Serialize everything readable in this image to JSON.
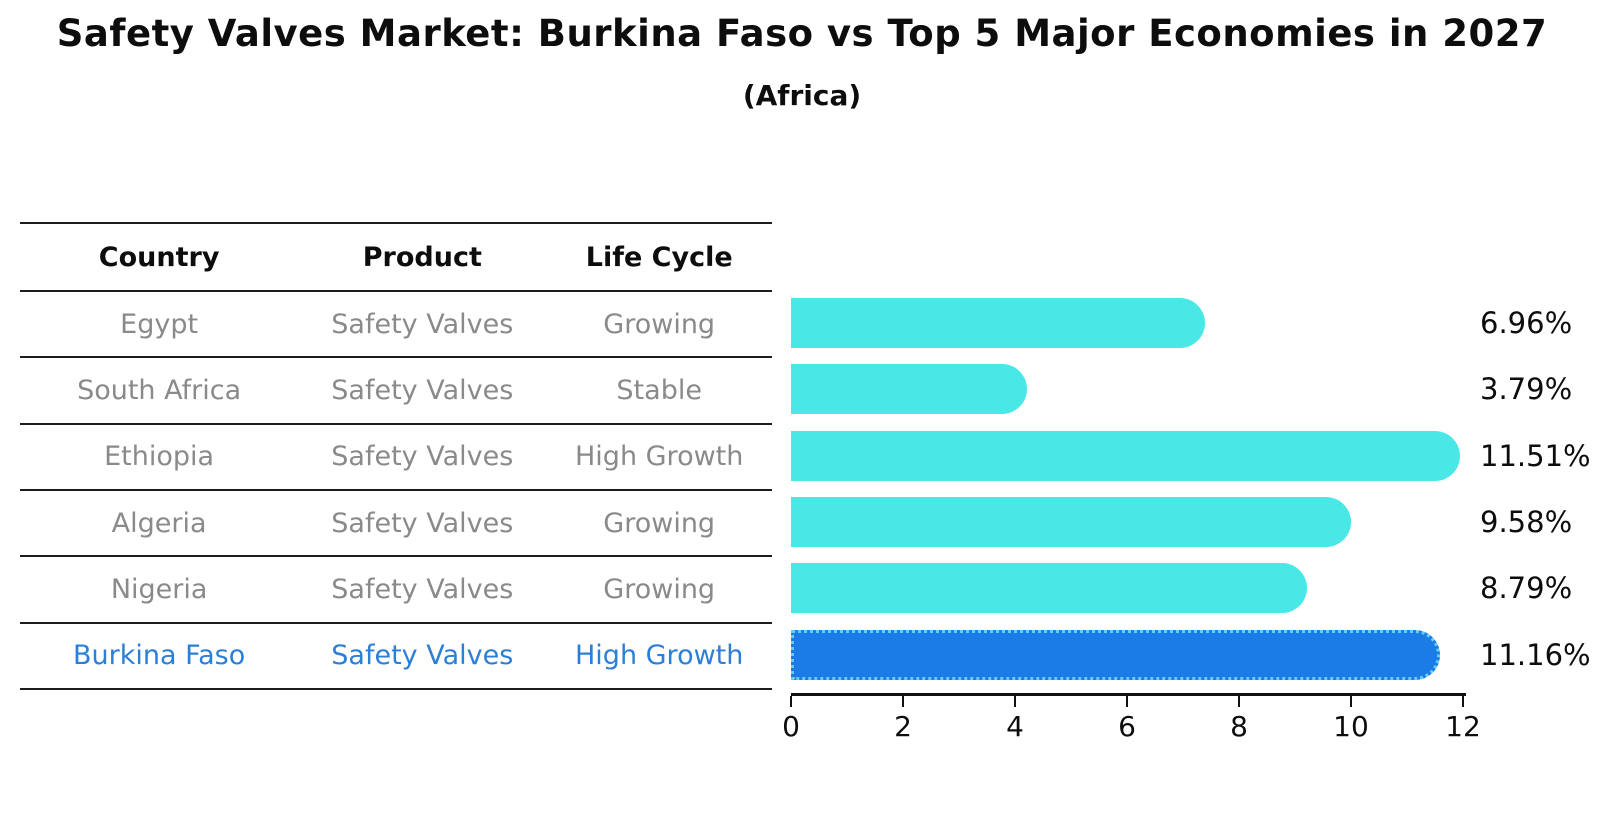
{
  "header": {
    "title": "Safety Valves Market: Burkina Faso vs Top 5 Major Economies in 2027",
    "subtitle": "(Africa)"
  },
  "table": {
    "columns": [
      "Country",
      "Product",
      "Life Cycle"
    ],
    "rows": [
      {
        "country": "Egypt",
        "product": "Safety Valves",
        "life_cycle": "Growing",
        "highlight": false
      },
      {
        "country": "South Africa",
        "product": "Safety Valves",
        "life_cycle": "Stable",
        "highlight": false
      },
      {
        "country": "Ethiopia",
        "product": "Safety Valves",
        "life_cycle": "High Growth",
        "highlight": false
      },
      {
        "country": "Algeria",
        "product": "Safety Valves",
        "life_cycle": "Growing",
        "highlight": false
      },
      {
        "country": "Nigeria",
        "product": "Safety Valves",
        "life_cycle": "Growing",
        "highlight": true
      }
    ],
    "highlight_row": {
      "country": "Burkina Faso",
      "product": "Safety Valves",
      "life_cycle": "High Growth"
    }
  },
  "chart_data": {
    "type": "bar",
    "orientation": "horizontal",
    "title": "Safety Valves Market: Burkina Faso vs Top 5 Major Economies in 2027",
    "subtitle": "(Africa)",
    "categories": [
      "Egypt",
      "South Africa",
      "Ethiopia",
      "Algeria",
      "Nigeria",
      "Burkina Faso"
    ],
    "values": [
      6.96,
      3.79,
      11.51,
      9.58,
      8.79,
      11.16
    ],
    "value_labels": [
      "6.96%",
      "3.79%",
      "11.51%",
      "9.58%",
      "8.79%",
      "11.16%"
    ],
    "highlight_index": 5,
    "x_ticks": [
      0,
      2,
      4,
      6,
      8,
      10,
      12
    ],
    "xlim": [
      0,
      12
    ],
    "grid": false,
    "legend": "none",
    "colors": {
      "bar": "#49E8E6",
      "highlight_bar": "#1B7BE7",
      "highlight_border": "#66CDF2",
      "axis": "#111111",
      "table_text": "#8A8A8A",
      "highlight_text": "#2B7FD6"
    }
  }
}
